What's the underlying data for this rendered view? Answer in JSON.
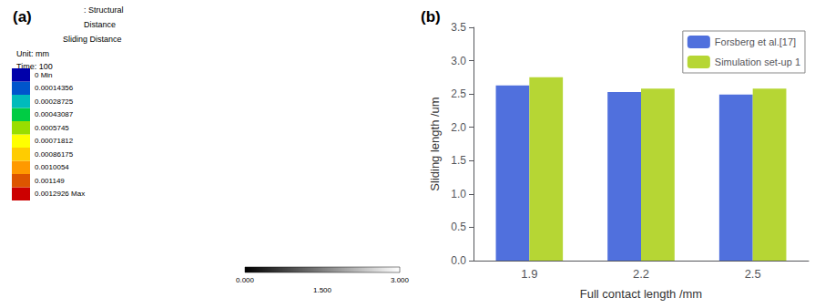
{
  "chart_data": [
    {
      "type": "colorbar",
      "title": "(a)",
      "annotations": [
        ": Structural",
        "Distance",
        "Sliding Distance",
        "Unit: mm",
        "Time: 100"
      ],
      "colors": [
        "#cc0000",
        "#dd5500",
        "#ff9900",
        "#ffcc00",
        "#ffff00",
        "#99dd00",
        "#00cc44",
        "#00bbbb",
        "#0055cc",
        "#0000aa"
      ],
      "color_labels": [
        "0.0012926 Max",
        "0.001149",
        "0.0010054",
        "0.00086175",
        "0.00071812",
        "0.0005745",
        "0.00043087",
        "0.00028725",
        "0.00014356",
        "0 Min"
      ],
      "scale_ticks": [
        {
          "value": 0,
          "label": "0.000"
        },
        {
          "value": 1.5,
          "label": "1.500"
        },
        {
          "value": 3,
          "label": "3.000"
        }
      ]
    },
    {
      "type": "bar",
      "title": "(b)",
      "categories": [
        "1.9",
        "2.2",
        "2.5"
      ],
      "series": [
        {
          "name": "Forsberg et al.[17]",
          "values": [
            2.63,
            2.53,
            2.49
          ]
        },
        {
          "name": "Simulation set-up 1",
          "values": [
            2.75,
            2.58,
            2.58
          ]
        }
      ],
      "xlabel": "Full contact length /mm",
      "ylabel": "Sliding length /um",
      "ylim": [
        0,
        3.5
      ],
      "yticks": [
        {
          "value": 0,
          "label": "0.0"
        },
        0.5,
        {
          "value": 1,
          "label": "1.0"
        },
        1.5,
        {
          "value": 2,
          "label": "2.0"
        },
        2.5,
        {
          "value": 3,
          "label": "3.0"
        },
        3.5
      ],
      "grid": false,
      "legend": "upper right"
    }
  ]
}
